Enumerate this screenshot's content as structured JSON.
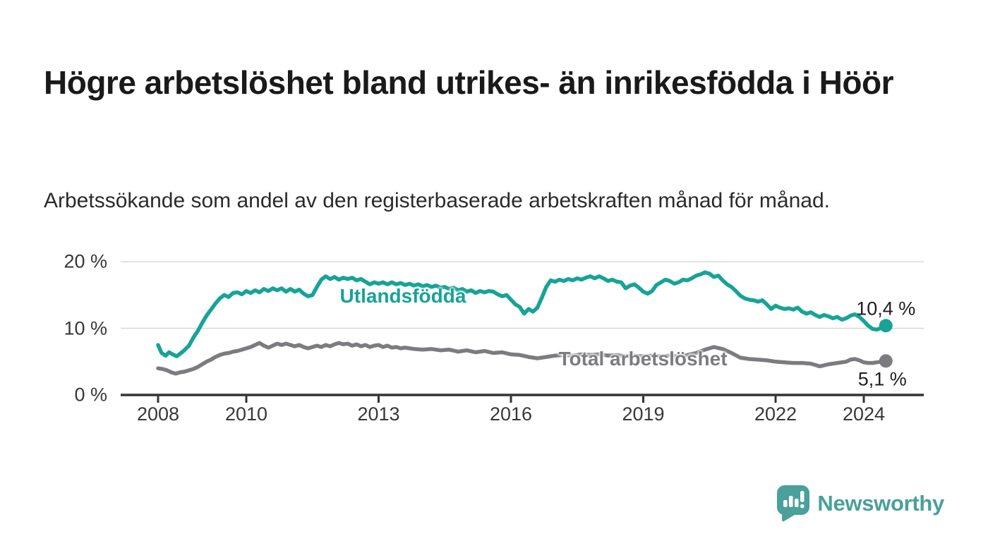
{
  "header": {
    "title": "Högre arbetslöshet bland utrikes- än inrikesfödda i Höör",
    "subtitle": "Arbetssökande som andel av den registerbaserade arbetskraften månad för månad."
  },
  "footer": {
    "brand": "Newsworthy",
    "logo_icon": "bar-chart-speech-bubble-icon",
    "brand_color": "#4aa09a"
  },
  "colors": {
    "accent_teal": "#17a398",
    "neutral_gray": "#7c7c80",
    "gridline": "#d8d8d8",
    "axis": "#333333",
    "text_dark": "#1a1a1a"
  },
  "chart_data": {
    "type": "line",
    "title": "Högre arbetslöshet bland utrikes- än inrikesfödda i Höör",
    "xlabel": "",
    "ylabel": "",
    "grid": "horizontal",
    "legend": "inline-labels",
    "x_axis": {
      "range": [
        2007.15,
        2025.35
      ],
      "ticks": [
        {
          "label": "2008",
          "value": 2008
        },
        {
          "label": "2010",
          "value": 2010
        },
        {
          "label": "2013",
          "value": 2013
        },
        {
          "label": "2016",
          "value": 2016
        },
        {
          "label": "2019",
          "value": 2019
        },
        {
          "label": "2022",
          "value": 2022
        },
        {
          "label": "2024",
          "value": 2024
        }
      ]
    },
    "y_axis": {
      "range": [
        0,
        21
      ],
      "unit": "%",
      "ticks": [
        {
          "label": "0 %",
          "value": 0
        },
        {
          "label": "10 %",
          "value": 10
        },
        {
          "label": "20 %",
          "value": 20
        }
      ]
    },
    "series": [
      {
        "name": "Utlandsfödda",
        "color": "#17a398",
        "end_value": 10.4,
        "end_label": "10,4 %",
        "points": [
          [
            2008.0,
            7.5
          ],
          [
            2008.08,
            6.3
          ],
          [
            2008.17,
            5.9
          ],
          [
            2008.25,
            6.4
          ],
          [
            2008.33,
            6.1
          ],
          [
            2008.42,
            5.8
          ],
          [
            2008.5,
            6.2
          ],
          [
            2008.58,
            6.6
          ],
          [
            2008.7,
            7.4
          ],
          [
            2008.8,
            8.6
          ],
          [
            2008.9,
            9.6
          ],
          [
            2009.0,
            10.8
          ],
          [
            2009.1,
            11.9
          ],
          [
            2009.2,
            12.8
          ],
          [
            2009.3,
            13.7
          ],
          [
            2009.4,
            14.5
          ],
          [
            2009.5,
            15.0
          ],
          [
            2009.6,
            14.7
          ],
          [
            2009.7,
            15.3
          ],
          [
            2009.8,
            15.4
          ],
          [
            2009.9,
            15.1
          ],
          [
            2010.0,
            15.6
          ],
          [
            2010.1,
            15.3
          ],
          [
            2010.2,
            15.7
          ],
          [
            2010.3,
            15.4
          ],
          [
            2010.4,
            15.9
          ],
          [
            2010.5,
            15.6
          ],
          [
            2010.6,
            16.0
          ],
          [
            2010.7,
            15.7
          ],
          [
            2010.8,
            16.0
          ],
          [
            2010.9,
            15.5
          ],
          [
            2011.0,
            15.9
          ],
          [
            2011.1,
            15.5
          ],
          [
            2011.2,
            15.8
          ],
          [
            2011.3,
            15.2
          ],
          [
            2011.4,
            14.8
          ],
          [
            2011.5,
            15.0
          ],
          [
            2011.6,
            16.2
          ],
          [
            2011.7,
            17.3
          ],
          [
            2011.8,
            17.8
          ],
          [
            2011.9,
            17.4
          ],
          [
            2012.0,
            17.7
          ],
          [
            2012.1,
            17.3
          ],
          [
            2012.2,
            17.6
          ],
          [
            2012.3,
            17.4
          ],
          [
            2012.4,
            17.6
          ],
          [
            2012.5,
            17.2
          ],
          [
            2012.6,
            17.4
          ],
          [
            2012.7,
            17.0
          ],
          [
            2012.8,
            16.6
          ],
          [
            2012.9,
            16.9
          ],
          [
            2013.0,
            16.7
          ],
          [
            2013.1,
            16.9
          ],
          [
            2013.2,
            16.6
          ],
          [
            2013.3,
            16.9
          ],
          [
            2013.4,
            16.6
          ],
          [
            2013.5,
            16.8
          ],
          [
            2013.6,
            16.5
          ],
          [
            2013.7,
            16.7
          ],
          [
            2013.8,
            16.4
          ],
          [
            2013.9,
            16.6
          ],
          [
            2014.0,
            16.3
          ],
          [
            2014.1,
            16.5
          ],
          [
            2014.2,
            16.2
          ],
          [
            2014.3,
            16.4
          ],
          [
            2014.4,
            16.1
          ],
          [
            2014.5,
            16.2
          ],
          [
            2014.6,
            15.9
          ],
          [
            2014.7,
            16.1
          ],
          [
            2014.8,
            15.7
          ],
          [
            2014.9,
            15.9
          ],
          [
            2015.0,
            15.5
          ],
          [
            2015.1,
            15.7
          ],
          [
            2015.2,
            15.3
          ],
          [
            2015.3,
            15.6
          ],
          [
            2015.4,
            15.4
          ],
          [
            2015.5,
            15.6
          ],
          [
            2015.6,
            15.5
          ],
          [
            2015.7,
            15.1
          ],
          [
            2015.8,
            14.8
          ],
          [
            2015.9,
            15.0
          ],
          [
            2016.0,
            14.3
          ],
          [
            2016.1,
            13.6
          ],
          [
            2016.2,
            13.2
          ],
          [
            2016.3,
            12.2
          ],
          [
            2016.4,
            12.9
          ],
          [
            2016.5,
            12.5
          ],
          [
            2016.6,
            13.1
          ],
          [
            2016.7,
            14.6
          ],
          [
            2016.8,
            16.2
          ],
          [
            2016.9,
            17.2
          ],
          [
            2017.0,
            17.0
          ],
          [
            2017.1,
            17.3
          ],
          [
            2017.2,
            17.1
          ],
          [
            2017.3,
            17.4
          ],
          [
            2017.4,
            17.2
          ],
          [
            2017.5,
            17.5
          ],
          [
            2017.6,
            17.3
          ],
          [
            2017.7,
            17.6
          ],
          [
            2017.8,
            17.8
          ],
          [
            2017.9,
            17.5
          ],
          [
            2018.0,
            17.8
          ],
          [
            2018.1,
            17.5
          ],
          [
            2018.2,
            17.1
          ],
          [
            2018.3,
            17.3
          ],
          [
            2018.4,
            17.0
          ],
          [
            2018.5,
            16.9
          ],
          [
            2018.6,
            16.0
          ],
          [
            2018.7,
            16.4
          ],
          [
            2018.8,
            16.6
          ],
          [
            2018.9,
            16.1
          ],
          [
            2019.0,
            15.5
          ],
          [
            2019.1,
            15.2
          ],
          [
            2019.2,
            15.6
          ],
          [
            2019.3,
            16.5
          ],
          [
            2019.4,
            16.9
          ],
          [
            2019.5,
            17.3
          ],
          [
            2019.6,
            17.1
          ],
          [
            2019.7,
            16.7
          ],
          [
            2019.8,
            16.9
          ],
          [
            2019.9,
            17.3
          ],
          [
            2020.0,
            17.2
          ],
          [
            2020.1,
            17.5
          ],
          [
            2020.2,
            17.9
          ],
          [
            2020.3,
            18.1
          ],
          [
            2020.4,
            18.4
          ],
          [
            2020.5,
            18.2
          ],
          [
            2020.6,
            17.7
          ],
          [
            2020.7,
            17.9
          ],
          [
            2020.8,
            17.2
          ],
          [
            2020.9,
            16.6
          ],
          [
            2021.0,
            16.2
          ],
          [
            2021.1,
            15.6
          ],
          [
            2021.2,
            14.9
          ],
          [
            2021.3,
            14.5
          ],
          [
            2021.4,
            14.3
          ],
          [
            2021.5,
            14.2
          ],
          [
            2021.6,
            14.0
          ],
          [
            2021.7,
            14.2
          ],
          [
            2021.8,
            13.6
          ],
          [
            2021.9,
            12.9
          ],
          [
            2022.0,
            13.4
          ],
          [
            2022.1,
            13.1
          ],
          [
            2022.2,
            12.9
          ],
          [
            2022.3,
            13.0
          ],
          [
            2022.4,
            12.8
          ],
          [
            2022.5,
            13.1
          ],
          [
            2022.6,
            12.5
          ],
          [
            2022.7,
            12.2
          ],
          [
            2022.8,
            12.4
          ],
          [
            2022.9,
            12.0
          ],
          [
            2023.0,
            11.7
          ],
          [
            2023.1,
            12.0
          ],
          [
            2023.2,
            11.8
          ],
          [
            2023.3,
            11.5
          ],
          [
            2023.4,
            11.7
          ],
          [
            2023.5,
            11.3
          ],
          [
            2023.6,
            11.5
          ],
          [
            2023.7,
            11.9
          ],
          [
            2023.8,
            12.1
          ],
          [
            2023.9,
            11.7
          ],
          [
            2024.0,
            11.1
          ],
          [
            2024.1,
            10.4
          ],
          [
            2024.2,
            9.9
          ],
          [
            2024.3,
            9.8
          ],
          [
            2024.4,
            10.1
          ],
          [
            2024.5,
            10.4
          ]
        ]
      },
      {
        "name": "Total arbetslöshet",
        "color": "#7c7c80",
        "end_value": 5.1,
        "end_label": "5,1 %",
        "points": [
          [
            2008.0,
            4.0
          ],
          [
            2008.1,
            3.9
          ],
          [
            2008.2,
            3.7
          ],
          [
            2008.3,
            3.4
          ],
          [
            2008.4,
            3.2
          ],
          [
            2008.5,
            3.4
          ],
          [
            2008.6,
            3.5
          ],
          [
            2008.7,
            3.7
          ],
          [
            2008.8,
            3.9
          ],
          [
            2008.9,
            4.2
          ],
          [
            2009.0,
            4.6
          ],
          [
            2009.1,
            5.0
          ],
          [
            2009.2,
            5.3
          ],
          [
            2009.3,
            5.7
          ],
          [
            2009.4,
            6.0
          ],
          [
            2009.5,
            6.2
          ],
          [
            2009.6,
            6.3
          ],
          [
            2009.7,
            6.5
          ],
          [
            2009.8,
            6.6
          ],
          [
            2009.9,
            6.8
          ],
          [
            2010.0,
            7.0
          ],
          [
            2010.1,
            7.2
          ],
          [
            2010.2,
            7.5
          ],
          [
            2010.3,
            7.8
          ],
          [
            2010.4,
            7.4
          ],
          [
            2010.5,
            7.1
          ],
          [
            2010.6,
            7.4
          ],
          [
            2010.7,
            7.7
          ],
          [
            2010.8,
            7.5
          ],
          [
            2010.9,
            7.7
          ],
          [
            2011.0,
            7.5
          ],
          [
            2011.1,
            7.3
          ],
          [
            2011.2,
            7.5
          ],
          [
            2011.3,
            7.2
          ],
          [
            2011.4,
            7.0
          ],
          [
            2011.5,
            7.2
          ],
          [
            2011.6,
            7.4
          ],
          [
            2011.7,
            7.2
          ],
          [
            2011.8,
            7.5
          ],
          [
            2011.9,
            7.3
          ],
          [
            2012.0,
            7.6
          ],
          [
            2012.1,
            7.8
          ],
          [
            2012.2,
            7.6
          ],
          [
            2012.3,
            7.7
          ],
          [
            2012.4,
            7.4
          ],
          [
            2012.5,
            7.6
          ],
          [
            2012.6,
            7.3
          ],
          [
            2012.7,
            7.5
          ],
          [
            2012.8,
            7.2
          ],
          [
            2012.9,
            7.4
          ],
          [
            2013.0,
            7.5
          ],
          [
            2013.1,
            7.2
          ],
          [
            2013.2,
            7.4
          ],
          [
            2013.3,
            7.1
          ],
          [
            2013.4,
            7.2
          ],
          [
            2013.5,
            7.0
          ],
          [
            2013.6,
            7.1
          ],
          [
            2013.8,
            6.9
          ],
          [
            2014.0,
            6.8
          ],
          [
            2014.2,
            6.9
          ],
          [
            2014.4,
            6.7
          ],
          [
            2014.6,
            6.8
          ],
          [
            2014.8,
            6.5
          ],
          [
            2015.0,
            6.7
          ],
          [
            2015.2,
            6.4
          ],
          [
            2015.4,
            6.6
          ],
          [
            2015.6,
            6.3
          ],
          [
            2015.8,
            6.4
          ],
          [
            2016.0,
            6.1
          ],
          [
            2016.2,
            6.0
          ],
          [
            2016.4,
            5.7
          ],
          [
            2016.6,
            5.5
          ],
          [
            2016.8,
            5.7
          ],
          [
            2017.0,
            5.9
          ],
          [
            2017.2,
            6.0
          ],
          [
            2017.4,
            5.9
          ],
          [
            2017.6,
            6.1
          ],
          [
            2017.8,
            6.0
          ],
          [
            2018.0,
            6.1
          ],
          [
            2018.2,
            5.9
          ],
          [
            2018.4,
            6.0
          ],
          [
            2018.6,
            5.8
          ],
          [
            2018.8,
            5.9
          ],
          [
            2019.0,
            5.8
          ],
          [
            2019.2,
            5.9
          ],
          [
            2019.4,
            5.8
          ],
          [
            2019.6,
            5.9
          ],
          [
            2019.8,
            5.8
          ],
          [
            2020.0,
            6.0
          ],
          [
            2020.2,
            6.3
          ],
          [
            2020.4,
            6.8
          ],
          [
            2020.6,
            7.2
          ],
          [
            2020.8,
            6.9
          ],
          [
            2021.0,
            6.3
          ],
          [
            2021.2,
            5.6
          ],
          [
            2021.4,
            5.4
          ],
          [
            2021.6,
            5.3
          ],
          [
            2021.8,
            5.2
          ],
          [
            2022.0,
            5.0
          ],
          [
            2022.2,
            4.9
          ],
          [
            2022.4,
            4.8
          ],
          [
            2022.6,
            4.8
          ],
          [
            2022.8,
            4.7
          ],
          [
            2023.0,
            4.3
          ],
          [
            2023.2,
            4.6
          ],
          [
            2023.4,
            4.8
          ],
          [
            2023.6,
            5.0
          ],
          [
            2023.7,
            5.3
          ],
          [
            2023.8,
            5.4
          ],
          [
            2023.9,
            5.2
          ],
          [
            2024.0,
            4.9
          ],
          [
            2024.1,
            4.8
          ],
          [
            2024.2,
            4.8
          ],
          [
            2024.3,
            4.9
          ],
          [
            2024.4,
            5.0
          ],
          [
            2024.5,
            5.1
          ]
        ]
      }
    ]
  }
}
